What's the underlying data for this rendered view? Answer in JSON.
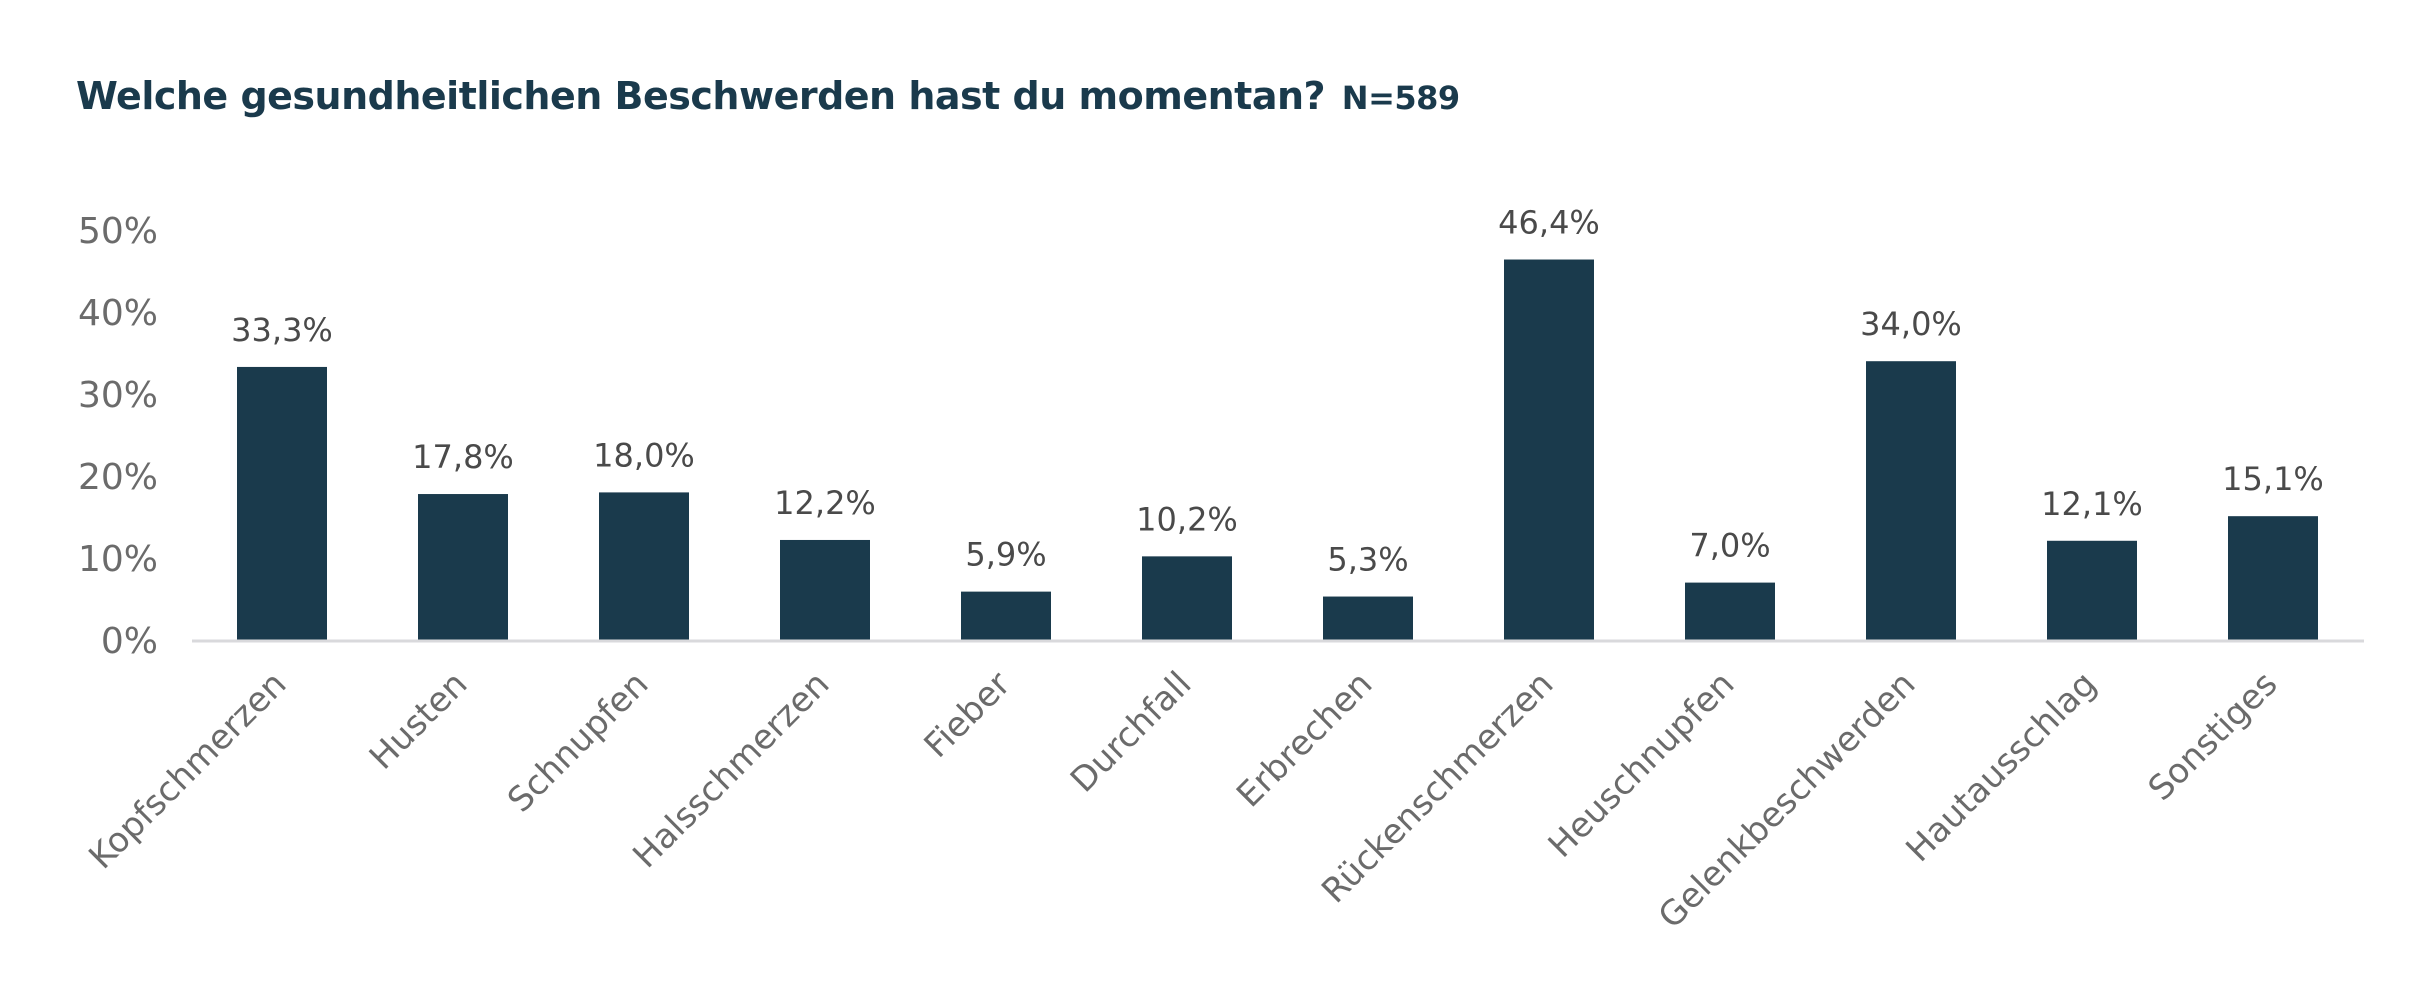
{
  "chart_data": {
    "type": "bar",
    "title": "Welche gesundheitlichen Beschwerden hast du momentan?",
    "subtitle": "N=589",
    "categories": [
      "Kopfschmerzen",
      "Husten",
      "Schnupfen",
      "Halsschmerzen",
      "Fieber",
      "Durchfall",
      "Erbrechen",
      "Rückenschmerzen",
      "Heuschnupfen",
      "Gelenkbeschwerden",
      "Hautausschlag",
      "Sonstiges"
    ],
    "values": [
      33.3,
      17.8,
      18.0,
      12.2,
      5.9,
      10.2,
      5.3,
      46.4,
      7.0,
      34.0,
      12.1,
      15.1
    ],
    "value_labels": [
      "33,3%",
      "17,8%",
      "18,0%",
      "12,2%",
      "5,9%",
      "10,2%",
      "5,3%",
      "46,4%",
      "7,0%",
      "34,0%",
      "12,1%",
      "15,1%"
    ],
    "yticks": [
      0,
      10,
      20,
      30,
      40,
      50
    ],
    "ytick_labels": [
      "0%",
      "10%",
      "20%",
      "30%",
      "40%",
      "50%"
    ],
    "ylim": [
      0,
      50
    ],
    "xlabel": "",
    "ylabel": "",
    "grid": false,
    "legend": "none",
    "colors": {
      "bar": "#1a3a4c",
      "axis": "#d9d9dc",
      "title": "#1a3a4c"
    }
  }
}
